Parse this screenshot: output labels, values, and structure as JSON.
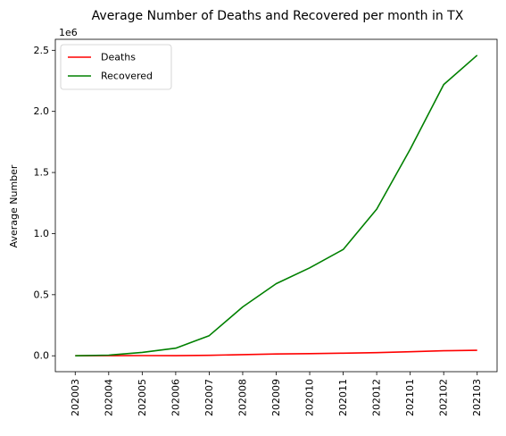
{
  "chart_data": {
    "type": "line",
    "title": "Average Number of Deaths and Recovered per month in TX",
    "xlabel": "",
    "ylabel": "Average Number",
    "y_offset_label": "1e6",
    "categories": [
      "202003",
      "202004",
      "202005",
      "202006",
      "202007",
      "202008",
      "202009",
      "202010",
      "202011",
      "202012",
      "202101",
      "202102",
      "202103"
    ],
    "series": [
      {
        "name": "Deaths",
        "color": "#ff0000",
        "values": [
          100,
          1000,
          1500,
          1200,
          3500,
          10000,
          15000,
          18000,
          21000,
          26000,
          33000,
          41000,
          45000
        ]
      },
      {
        "name": "Recovered",
        "color": "#008000",
        "values": [
          0,
          5000,
          28000,
          62000,
          165000,
          400000,
          590000,
          720000,
          870000,
          1200000,
          1690000,
          2220000,
          2460000
        ]
      }
    ],
    "ylim": [
      -130000,
      2590000
    ],
    "yticks": [
      0,
      500000,
      1000000,
      1500000,
      2000000,
      2500000
    ],
    "ytick_labels": [
      "0.0",
      "0.5",
      "1.0",
      "1.5",
      "2.0",
      "2.5"
    ],
    "legend_position": "top-left",
    "grid": false
  }
}
